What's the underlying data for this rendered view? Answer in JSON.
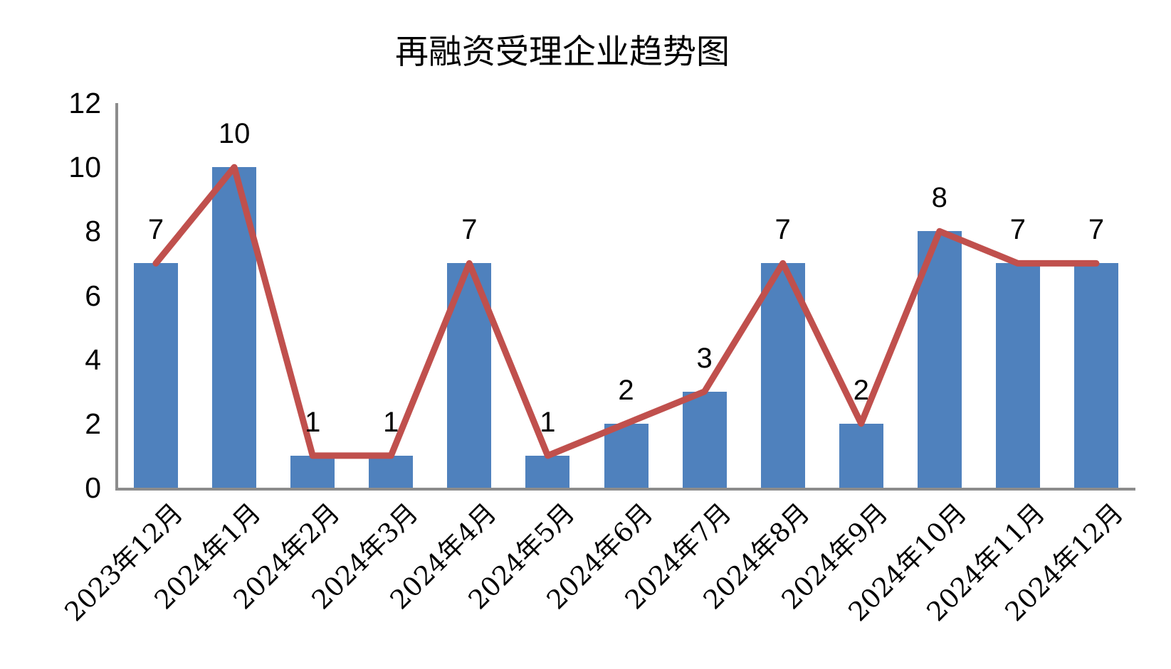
{
  "chart": {
    "title": "再融资受理企业趋势图"
  },
  "chart_data": {
    "type": "combo",
    "title": "再融资受理企业趋势图",
    "categories": [
      "2023年12月",
      "2024年1月",
      "2024年2月",
      "2024年3月",
      "2024年4月",
      "2024年5月",
      "2024年6月",
      "2024年7月",
      "2024年8月",
      "2024年9月",
      "2024年10月",
      "2024年11月",
      "2024年12月"
    ],
    "values": [
      7,
      10,
      1,
      1,
      7,
      1,
      2,
      3,
      7,
      2,
      8,
      7,
      7
    ],
    "series": [
      {
        "type": "bar",
        "values": [
          7,
          10,
          1,
          1,
          7,
          1,
          2,
          3,
          7,
          2,
          8,
          7,
          7
        ],
        "color": "#4F81BD"
      },
      {
        "type": "line",
        "values": [
          7,
          10,
          1,
          1,
          7,
          1,
          2,
          3,
          7,
          2,
          8,
          7,
          7
        ],
        "color": "#C0504D"
      }
    ],
    "data_labels": [
      "7",
      "10",
      "1",
      "1",
      "7",
      "1",
      "2",
      "3",
      "7",
      "2",
      "8",
      "7",
      "7"
    ],
    "xlabel": "",
    "ylabel": "",
    "ylim": [
      0,
      12
    ],
    "yticks": [
      0,
      2,
      4,
      6,
      8,
      10,
      12
    ],
    "grid": false,
    "legend": "none",
    "colors": {
      "bar": "#4F81BD",
      "line": "#C0504D",
      "axis": "#8C8C8C",
      "text": "#000000",
      "background": "#FFFFFF"
    }
  }
}
